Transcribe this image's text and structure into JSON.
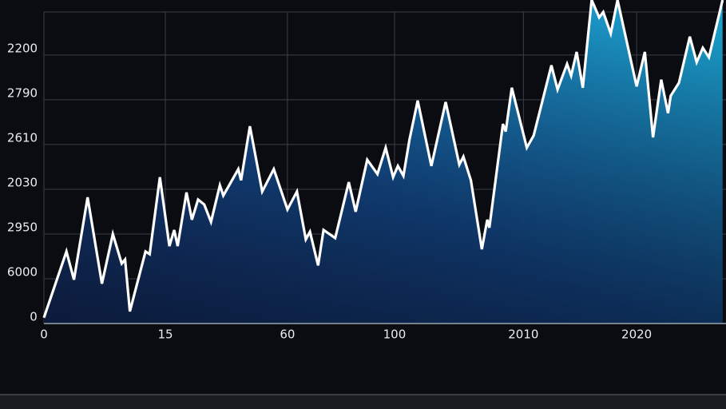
{
  "chart_data": {
    "type": "area",
    "x": [
      0,
      3.3,
      4.4,
      6.4,
      8.5,
      10.1,
      11.4,
      11.9,
      12.6,
      14.9,
      15.5,
      17.0,
      18.4,
      19.1,
      19.6,
      20.9,
      21.7,
      22.6,
      23.5,
      24.5,
      25.8,
      26.3,
      28.5,
      28.9,
      30.2,
      32.0,
      33.7,
      35.7,
      37.1,
      38.4,
      39.0,
      40.2,
      41.0,
      42.7,
      44.7,
      45.7,
      47.4,
      48.9,
      50.1,
      51.2,
      51.9,
      52.7,
      53.6,
      54.8,
      56.8,
      58.9,
      60.9,
      61.5,
      62.6,
      64.2,
      65.0,
      65.3,
      67.3,
      67.7,
      68.6,
      70.8,
      71.8,
      74.4,
      75.3,
      76.7,
      77.3,
      78.1,
      79.0,
      80.3,
      81.4,
      82.0,
      83.1,
      84.1,
      86.9,
      88.1,
      89.3,
      90.5,
      91.5,
      91.9,
      93.1,
      94.7,
      95.7,
      96.6,
      97.5,
      99.5
    ],
    "values": [
      0.13,
      1.61,
      0.98,
      2.82,
      0.89,
      2.0,
      1.34,
      1.43,
      0.27,
      1.61,
      1.55,
      3.27,
      1.73,
      2.09,
      1.73,
      2.93,
      2.32,
      2.77,
      2.66,
      2.27,
      3.09,
      2.86,
      3.45,
      3.2,
      4.41,
      2.95,
      3.45,
      2.55,
      2.95,
      1.88,
      2.05,
      1.3,
      2.09,
      1.91,
      3.16,
      2.5,
      3.66,
      3.34,
      3.93,
      3.27,
      3.52,
      3.3,
      4.11,
      4.98,
      3.52,
      4.95,
      3.55,
      3.73,
      3.2,
      1.66,
      2.32,
      2.14,
      4.46,
      4.29,
      5.27,
      3.93,
      4.2,
      5.77,
      5.23,
      5.8,
      5.54,
      6.07,
      5.27,
      7.23,
      6.84,
      6.96,
      6.48,
      7.23,
      5.3,
      6.07,
      4.16,
      5.45,
      4.7,
      5.09,
      5.38,
      6.41,
      5.84,
      6.16,
      5.95,
      7.23
    ],
    "color": "#ffffff",
    "xlim": [
      0,
      100
    ],
    "xticks": [
      0,
      {
        "value": 17.8,
        "label": "15"
      },
      {
        "value": 35.7,
        "label": "60"
      },
      {
        "value": 51.4,
        "label": "100"
      },
      {
        "value": 70.3,
        "label": "2010"
      },
      {
        "value": 86.9,
        "label": "2020"
      }
    ],
    "ylim": [
      0,
      7.23
    ],
    "yticks": [
      0,
      {
        "value": 1,
        "label": "6000"
      },
      {
        "value": 2,
        "label": "2950"
      },
      {
        "value": 3,
        "label": "2030"
      },
      {
        "value": 4,
        "label": "2610"
      },
      {
        "value": 5,
        "label": "2790"
      },
      {
        "value": 6,
        "label": "2200"
      }
    ],
    "grid": true
  }
}
